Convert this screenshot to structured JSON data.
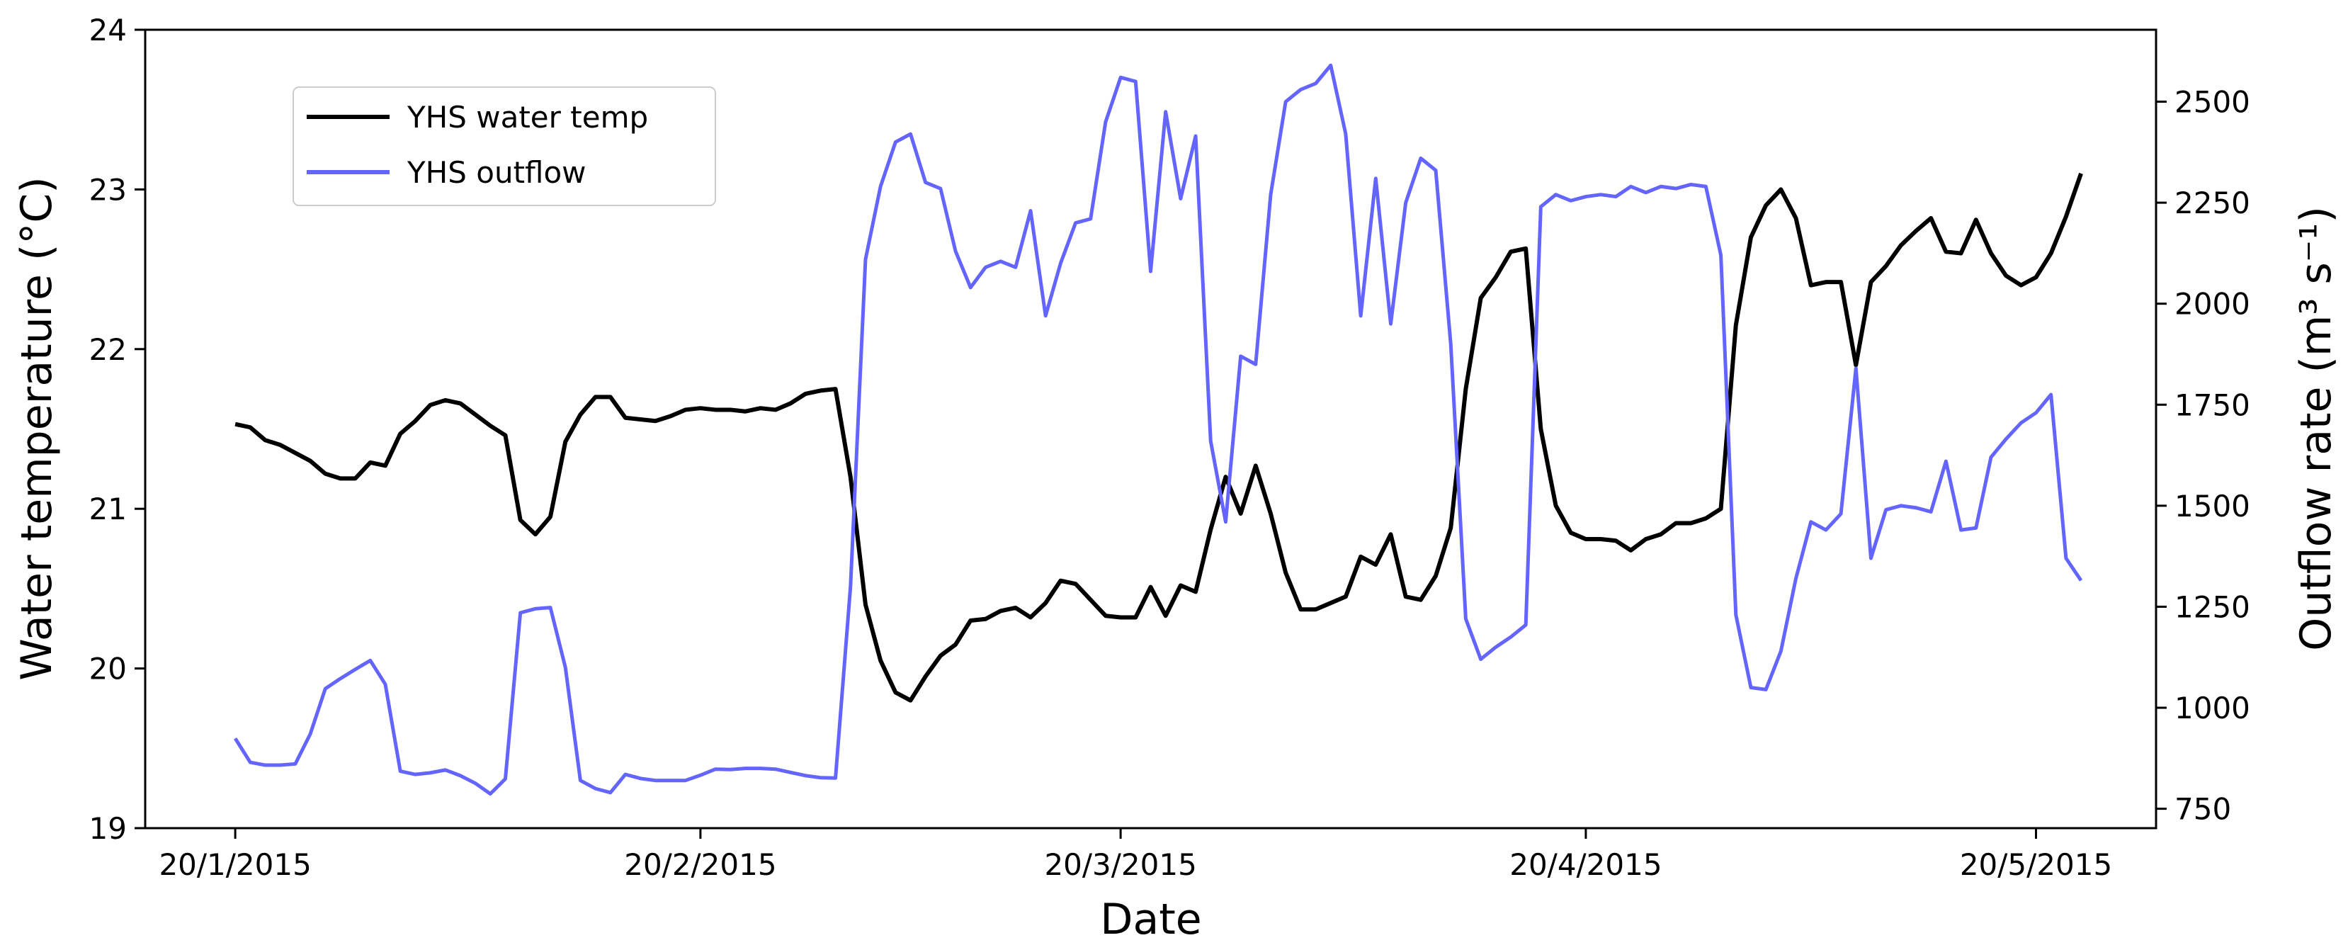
{
  "chart_data": {
    "type": "line",
    "xlabel": "Date",
    "ylabel": "Water temperature (°C)",
    "y2label": "Outflow rate (m³ s⁻¹)",
    "x": [
      "20/1/2015",
      "21/1/2015",
      "22/1/2015",
      "23/1/2015",
      "24/1/2015",
      "25/1/2015",
      "26/1/2015",
      "27/1/2015",
      "28/1/2015",
      "29/1/2015",
      "30/1/2015",
      "31/1/2015",
      "1/2/2015",
      "2/2/2015",
      "3/2/2015",
      "4/2/2015",
      "5/2/2015",
      "6/2/2015",
      "7/2/2015",
      "8/2/2015",
      "9/2/2015",
      "10/2/2015",
      "11/2/2015",
      "12/2/2015",
      "13/2/2015",
      "14/2/2015",
      "15/2/2015",
      "16/2/2015",
      "17/2/2015",
      "18/2/2015",
      "19/2/2015",
      "20/2/2015",
      "21/2/2015",
      "22/2/2015",
      "23/2/2015",
      "24/2/2015",
      "25/2/2015",
      "26/2/2015",
      "27/2/2015",
      "28/2/2015",
      "1/3/2015",
      "2/3/2015",
      "3/3/2015",
      "4/3/2015",
      "5/3/2015",
      "6/3/2015",
      "7/3/2015",
      "8/3/2015",
      "9/3/2015",
      "10/3/2015",
      "11/3/2015",
      "12/3/2015",
      "13/3/2015",
      "14/3/2015",
      "15/3/2015",
      "16/3/2015",
      "17/3/2015",
      "18/3/2015",
      "19/3/2015",
      "20/3/2015",
      "21/3/2015",
      "22/3/2015",
      "23/3/2015",
      "24/3/2015",
      "25/3/2015",
      "26/3/2015",
      "27/3/2015",
      "28/3/2015",
      "29/3/2015",
      "30/3/2015",
      "31/3/2015",
      "1/4/2015",
      "2/4/2015",
      "3/4/2015",
      "4/4/2015",
      "5/4/2015",
      "6/4/2015",
      "7/4/2015",
      "8/4/2015",
      "9/4/2015",
      "10/4/2015",
      "11/4/2015",
      "12/4/2015",
      "13/4/2015",
      "14/4/2015",
      "15/4/2015",
      "16/4/2015",
      "17/4/2015",
      "18/4/2015",
      "19/4/2015",
      "20/4/2015",
      "21/4/2015",
      "22/4/2015",
      "23/4/2015",
      "24/4/2015",
      "25/4/2015",
      "26/4/2015",
      "27/4/2015",
      "28/4/2015",
      "29/4/2015",
      "30/4/2015",
      "1/5/2015",
      "2/5/2015",
      "3/5/2015",
      "4/5/2015",
      "5/5/2015",
      "6/5/2015",
      "7/5/2015",
      "8/5/2015",
      "9/5/2015",
      "10/5/2015",
      "11/5/2015",
      "12/5/2015",
      "13/5/2015",
      "14/5/2015",
      "15/5/2015",
      "16/5/2015",
      "17/5/2015",
      "18/5/2015",
      "19/5/2015",
      "20/5/2015",
      "21/5/2015",
      "22/5/2015",
      "23/5/2015"
    ],
    "xlim": [
      "14/1/2015",
      "28/5/2015"
    ],
    "xticks": [
      "20/1/2015",
      "20/2/2015",
      "20/3/2015",
      "20/4/2015",
      "20/5/2015"
    ],
    "ylim": [
      19,
      24
    ],
    "yticks": [
      19,
      20,
      21,
      22,
      23,
      24
    ],
    "y2lim": [
      702,
      2678
    ],
    "y2ticks": [
      750,
      1000,
      1250,
      1500,
      1750,
      2000,
      2250,
      2500
    ],
    "legend": "upper left",
    "series": [
      {
        "name": "YHS water temp",
        "color": "#000000",
        "axis": "y",
        "values": [
          21.53,
          21.51,
          21.43,
          21.4,
          21.35,
          21.3,
          21.22,
          21.19,
          21.19,
          21.29,
          21.27,
          21.47,
          21.55,
          21.65,
          21.68,
          21.66,
          21.59,
          21.52,
          21.46,
          20.93,
          20.84,
          20.95,
          21.42,
          21.59,
          21.7,
          21.7,
          21.57,
          21.56,
          21.55,
          21.58,
          21.62,
          21.63,
          21.62,
          21.62,
          21.61,
          21.63,
          21.62,
          21.66,
          21.72,
          21.74,
          21.75,
          21.2,
          20.4,
          20.05,
          19.85,
          19.8,
          19.95,
          20.08,
          20.15,
          20.3,
          20.31,
          20.36,
          20.38,
          20.32,
          20.41,
          20.55,
          20.53,
          20.43,
          20.33,
          20.32,
          20.32,
          20.51,
          20.33,
          20.52,
          20.48,
          20.87,
          21.2,
          20.97,
          21.27,
          20.97,
          20.6,
          20.37,
          20.37,
          20.41,
          20.45,
          20.7,
          20.65,
          20.84,
          20.45,
          20.43,
          20.58,
          20.88,
          21.75,
          22.32,
          22.45,
          22.61,
          22.63,
          21.5,
          21.02,
          20.85,
          20.81,
          20.81,
          20.8,
          20.74,
          20.81,
          20.84,
          20.91,
          20.91,
          20.94,
          21.0,
          22.15,
          22.7,
          22.9,
          23.0,
          22.82,
          22.4,
          22.42,
          22.42,
          21.9,
          22.42,
          22.52,
          22.65,
          22.74,
          22.82,
          22.61,
          22.6,
          22.81,
          22.6,
          22.46,
          22.4,
          22.45,
          22.6,
          22.83,
          23.1
        ]
      },
      {
        "name": "YHS outflow",
        "color": "#6464ff",
        "axis": "y2",
        "values": [
          924,
          865,
          858,
          858,
          861,
          935,
          1047,
          1072,
          1095,
          1117,
          1058,
          843,
          835,
          839,
          846,
          832,
          813,
          787,
          824,
          1235,
          1245,
          1248,
          1100,
          820,
          800,
          790,
          835,
          825,
          820,
          820,
          820,
          833,
          848,
          847,
          850,
          850,
          848,
          840,
          832,
          827,
          826,
          1300,
          2110,
          2290,
          2400,
          2420,
          2300,
          2285,
          2130,
          2040,
          2090,
          2105,
          2090,
          2230,
          1970,
          2100,
          2200,
          2210,
          2450,
          2560,
          2550,
          2080,
          2475,
          2260,
          2415,
          1660,
          1460,
          1870,
          1850,
          2270,
          2500,
          2530,
          2545,
          2590,
          2420,
          1970,
          2310,
          1950,
          2250,
          2360,
          2330,
          1900,
          1220,
          1120,
          1150,
          1175,
          1205,
          2240,
          2270,
          2255,
          2265,
          2270,
          2265,
          2290,
          2275,
          2290,
          2285,
          2295,
          2290,
          2120,
          1230,
          1050,
          1045,
          1140,
          1320,
          1460,
          1440,
          1480,
          1840,
          1370,
          1490,
          1500,
          1495,
          1485,
          1610,
          1440,
          1445,
          1620,
          1665,
          1705,
          1730,
          1775,
          1370,
          1315
        ]
      }
    ]
  }
}
